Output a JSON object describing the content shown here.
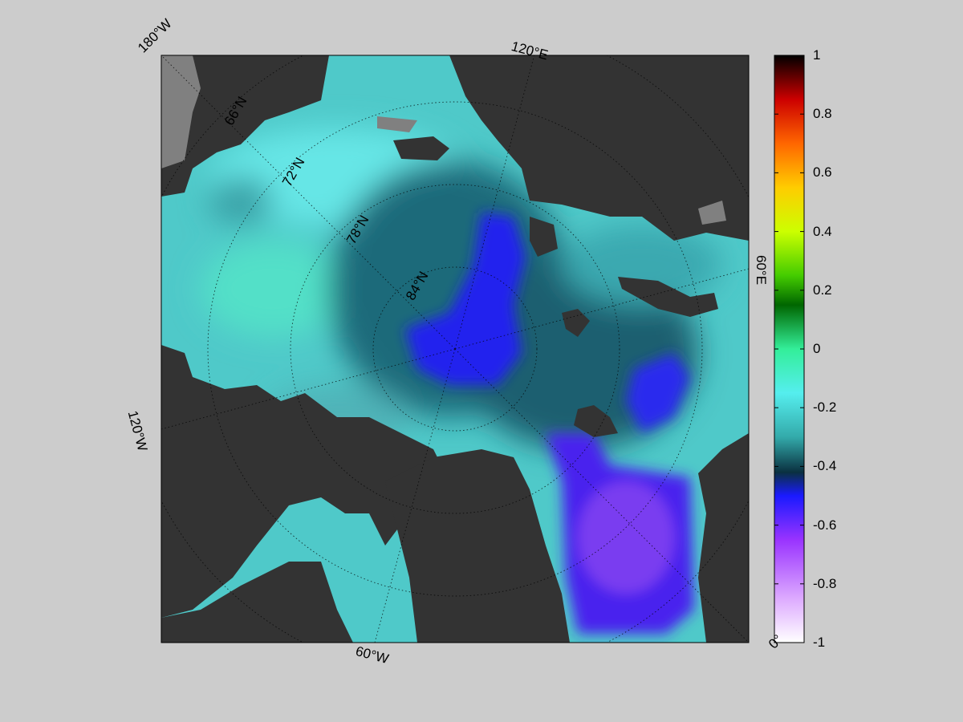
{
  "map": {
    "projection": "north polar stereographic",
    "longitude_labels": [
      "180°W",
      "120°E",
      "60°E",
      "0°",
      "60°W",
      "120°W"
    ],
    "latitude_labels": [
      "66°N",
      "72°N",
      "78°N",
      "84°N"
    ],
    "colors": {
      "background": "#cccccc",
      "land": "#333333",
      "missing": "#808080"
    }
  },
  "colorbar": {
    "min": -1,
    "max": 1,
    "ticks": [
      "1",
      "0.8",
      "0.6",
      "0.4",
      "0.2",
      "0",
      "-0.2",
      "-0.4",
      "-0.6",
      "-0.8",
      "-1"
    ],
    "stops": [
      {
        "value": 1.0,
        "color": "#000000"
      },
      {
        "value": 0.85,
        "color": "#cc0000"
      },
      {
        "value": 0.7,
        "color": "#ff6600"
      },
      {
        "value": 0.55,
        "color": "#ffcc00"
      },
      {
        "value": 0.4,
        "color": "#ccff00"
      },
      {
        "value": 0.25,
        "color": "#44cc00"
      },
      {
        "value": 0.15,
        "color": "#006600"
      },
      {
        "value": 0.0,
        "color": "#33ee99"
      },
      {
        "value": -0.15,
        "color": "#55eeee"
      },
      {
        "value": -0.3,
        "color": "#33aaaa"
      },
      {
        "value": -0.42,
        "color": "#0a3040"
      },
      {
        "value": -0.5,
        "color": "#1a1aff"
      },
      {
        "value": -0.65,
        "color": "#9933ff"
      },
      {
        "value": -0.85,
        "color": "#ddaaff"
      },
      {
        "value": -1.0,
        "color": "#ffffff"
      }
    ]
  }
}
